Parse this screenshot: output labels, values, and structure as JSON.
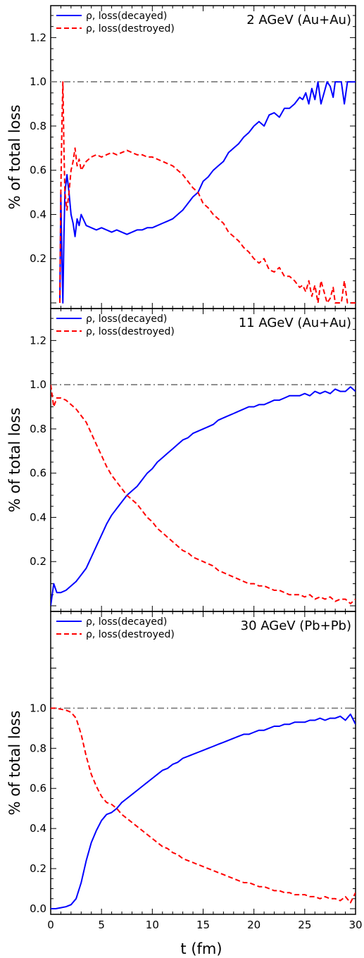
{
  "figure": {
    "xlabel": "t (fm)",
    "x_ticks": [
      "0",
      "5",
      "10",
      "15",
      "20",
      "25",
      "30"
    ]
  },
  "chart_data": [
    {
      "type": "line",
      "title": "2 AGeV (Au+Au)",
      "ylabel": "% of total loss",
      "xlim": [
        0,
        30
      ],
      "ylim": [
        0,
        1.3
      ],
      "y_ticks": [
        "0.2",
        "0.4",
        "0.6",
        "0.8",
        "1.0",
        "1.2"
      ],
      "reference_line": {
        "y": 1.0,
        "color": "#808080",
        "style": "dash-dot"
      },
      "legend_position": "top-left",
      "series": [
        {
          "name": "ρ, loss(decayed)",
          "color": "#0000ff",
          "style": "solid",
          "x": [
            0.9,
            1.0,
            1.1,
            1.2,
            1.3,
            1.4,
            1.6,
            1.8,
            2.0,
            2.2,
            2.4,
            2.6,
            2.8,
            3.0,
            3.5,
            4.0,
            4.5,
            5.0,
            5.5,
            6.0,
            6.5,
            7.0,
            7.5,
            8.0,
            8.5,
            9.0,
            9.5,
            10.0,
            10.5,
            11.0,
            11.5,
            12.0,
            12.5,
            13.0,
            13.5,
            14.0,
            14.5,
            15.0,
            15.5,
            16.0,
            16.5,
            17.0,
            17.5,
            18.0,
            18.5,
            19.0,
            19.5,
            20.0,
            20.5,
            21.0,
            21.5,
            22.0,
            22.5,
            23.0,
            23.5,
            24.0,
            24.5,
            24.8,
            25.1,
            25.4,
            25.7,
            26.0,
            26.3,
            26.6,
            26.9,
            27.2,
            27.5,
            27.8,
            28.0,
            28.3,
            28.6,
            28.9,
            29.2,
            29.5,
            30.0
          ],
          "y": [
            0.0,
            0.5,
            0.2,
            0.0,
            0.3,
            0.5,
            0.58,
            0.5,
            0.4,
            0.36,
            0.3,
            0.38,
            0.35,
            0.4,
            0.35,
            0.34,
            0.33,
            0.34,
            0.33,
            0.32,
            0.33,
            0.32,
            0.31,
            0.32,
            0.33,
            0.33,
            0.34,
            0.34,
            0.35,
            0.36,
            0.37,
            0.38,
            0.4,
            0.42,
            0.45,
            0.48,
            0.5,
            0.55,
            0.57,
            0.6,
            0.62,
            0.64,
            0.68,
            0.7,
            0.72,
            0.75,
            0.77,
            0.8,
            0.82,
            0.8,
            0.85,
            0.86,
            0.84,
            0.88,
            0.88,
            0.9,
            0.93,
            0.92,
            0.95,
            0.9,
            0.97,
            0.92,
            1.0,
            0.9,
            0.95,
            1.0,
            0.98,
            0.93,
            1.0,
            1.0,
            1.0,
            0.9,
            1.0,
            1.0,
            1.0
          ]
        },
        {
          "name": "ρ, loss(destroyed)",
          "color": "#ff0000",
          "style": "dashed",
          "x": [
            0.9,
            1.0,
            1.1,
            1.2,
            1.3,
            1.4,
            1.6,
            1.8,
            2.0,
            2.2,
            2.4,
            2.6,
            2.8,
            3.0,
            3.5,
            4.0,
            4.5,
            5.0,
            5.5,
            6.0,
            6.5,
            7.0,
            7.5,
            8.0,
            8.5,
            9.0,
            9.5,
            10.0,
            10.5,
            11.0,
            11.5,
            12.0,
            12.5,
            13.0,
            13.5,
            14.0,
            14.5,
            15.0,
            15.5,
            16.0,
            16.5,
            17.0,
            17.5,
            18.0,
            18.5,
            19.0,
            19.5,
            20.0,
            20.5,
            21.0,
            21.5,
            22.0,
            22.5,
            23.0,
            23.5,
            24.0,
            24.5,
            24.8,
            25.1,
            25.4,
            25.7,
            26.0,
            26.3,
            26.6,
            26.9,
            27.2,
            27.5,
            27.8,
            28.0,
            28.3,
            28.6,
            28.9,
            29.2,
            29.5,
            30.0
          ],
          "y": [
            0.0,
            0.5,
            0.8,
            1.0,
            0.7,
            0.5,
            0.42,
            0.5,
            0.6,
            0.64,
            0.7,
            0.62,
            0.65,
            0.6,
            0.64,
            0.66,
            0.67,
            0.66,
            0.67,
            0.68,
            0.67,
            0.68,
            0.69,
            0.68,
            0.67,
            0.67,
            0.66,
            0.66,
            0.65,
            0.64,
            0.63,
            0.62,
            0.6,
            0.58,
            0.55,
            0.52,
            0.5,
            0.45,
            0.43,
            0.4,
            0.38,
            0.36,
            0.32,
            0.3,
            0.28,
            0.25,
            0.23,
            0.2,
            0.18,
            0.2,
            0.15,
            0.14,
            0.16,
            0.12,
            0.12,
            0.1,
            0.07,
            0.08,
            0.05,
            0.1,
            0.03,
            0.08,
            0.0,
            0.1,
            0.05,
            0.0,
            0.02,
            0.07,
            0.0,
            0.0,
            0.0,
            0.1,
            0.0,
            0.0,
            0.0
          ]
        }
      ]
    },
    {
      "type": "line",
      "title": "11 AGeV (Au+Au)",
      "ylabel": "% of total loss",
      "xlim": [
        0,
        30
      ],
      "ylim": [
        0,
        1.3
      ],
      "y_ticks": [
        "0.2",
        "0.4",
        "0.6",
        "0.8",
        "1.0",
        "1.2"
      ],
      "reference_line": {
        "y": 1.0,
        "color": "#808080",
        "style": "dash-dot"
      },
      "legend_position": "top-left",
      "series": [
        {
          "name": "ρ, loss(decayed)",
          "color": "#0000ff",
          "style": "solid",
          "x": [
            0.0,
            0.3,
            0.6,
            1.0,
            1.5,
            2.0,
            2.5,
            3.0,
            3.5,
            4.0,
            4.5,
            5.0,
            5.5,
            6.0,
            6.5,
            7.0,
            7.5,
            8.0,
            8.5,
            9.0,
            9.5,
            10.0,
            10.5,
            11.0,
            11.5,
            12.0,
            12.5,
            13.0,
            13.5,
            14.0,
            14.5,
            15.0,
            15.5,
            16.0,
            16.5,
            17.0,
            17.5,
            18.0,
            18.5,
            19.0,
            19.5,
            20.0,
            20.5,
            21.0,
            21.5,
            22.0,
            22.5,
            23.0,
            23.5,
            24.0,
            24.5,
            25.0,
            25.5,
            26.0,
            26.5,
            27.0,
            27.5,
            28.0,
            28.5,
            29.0,
            29.5,
            30.0
          ],
          "y": [
            0.0,
            0.1,
            0.06,
            0.06,
            0.07,
            0.09,
            0.11,
            0.14,
            0.17,
            0.22,
            0.27,
            0.32,
            0.37,
            0.41,
            0.44,
            0.47,
            0.5,
            0.52,
            0.54,
            0.57,
            0.6,
            0.62,
            0.65,
            0.67,
            0.69,
            0.71,
            0.73,
            0.75,
            0.76,
            0.78,
            0.79,
            0.8,
            0.81,
            0.82,
            0.84,
            0.85,
            0.86,
            0.87,
            0.88,
            0.89,
            0.9,
            0.9,
            0.91,
            0.91,
            0.92,
            0.93,
            0.93,
            0.94,
            0.95,
            0.95,
            0.95,
            0.96,
            0.95,
            0.97,
            0.96,
            0.97,
            0.96,
            0.98,
            0.97,
            0.97,
            0.99,
            0.97
          ]
        },
        {
          "name": "ρ, loss(destroyed)",
          "color": "#ff0000",
          "style": "dashed",
          "x": [
            0.0,
            0.3,
            0.6,
            1.0,
            1.5,
            2.0,
            2.5,
            3.0,
            3.5,
            4.0,
            4.5,
            5.0,
            5.5,
            6.0,
            6.5,
            7.0,
            7.5,
            8.0,
            8.5,
            9.0,
            9.5,
            10.0,
            10.5,
            11.0,
            11.5,
            12.0,
            12.5,
            13.0,
            13.5,
            14.0,
            14.5,
            15.0,
            15.5,
            16.0,
            16.5,
            17.0,
            17.5,
            18.0,
            18.5,
            19.0,
            19.5,
            20.0,
            20.5,
            21.0,
            21.5,
            22.0,
            22.5,
            23.0,
            23.5,
            24.0,
            24.5,
            25.0,
            25.5,
            26.0,
            26.5,
            27.0,
            27.5,
            28.0,
            28.5,
            29.0,
            29.5,
            30.0
          ],
          "y": [
            1.0,
            0.9,
            0.94,
            0.94,
            0.93,
            0.91,
            0.89,
            0.86,
            0.83,
            0.78,
            0.73,
            0.68,
            0.63,
            0.59,
            0.56,
            0.53,
            0.5,
            0.48,
            0.46,
            0.43,
            0.4,
            0.38,
            0.35,
            0.33,
            0.31,
            0.29,
            0.27,
            0.25,
            0.24,
            0.22,
            0.21,
            0.2,
            0.19,
            0.18,
            0.16,
            0.15,
            0.14,
            0.13,
            0.12,
            0.11,
            0.1,
            0.1,
            0.09,
            0.09,
            0.08,
            0.07,
            0.07,
            0.06,
            0.05,
            0.05,
            0.05,
            0.04,
            0.05,
            0.03,
            0.04,
            0.03,
            0.04,
            0.02,
            0.03,
            0.03,
            0.01,
            0.03
          ]
        }
      ]
    },
    {
      "type": "line",
      "title": "30 AGeV (Pb+Pb)",
      "ylabel": "% of total loss",
      "xlim": [
        0,
        30
      ],
      "ylim": [
        0,
        1.3
      ],
      "y_ticks": [
        "0.0",
        "0.2",
        "0.4",
        "0.6",
        "0.8",
        "1.0"
      ],
      "reference_line": {
        "y": 1.0,
        "color": "#808080",
        "style": "dash-dot"
      },
      "legend_position": "top-left",
      "series": [
        {
          "name": "ρ, loss(decayed)",
          "color": "#0000ff",
          "style": "solid",
          "x": [
            0.0,
            0.5,
            1.0,
            1.5,
            2.0,
            2.5,
            3.0,
            3.5,
            4.0,
            4.5,
            5.0,
            5.5,
            6.0,
            6.5,
            7.0,
            7.5,
            8.0,
            8.5,
            9.0,
            9.5,
            10.0,
            10.5,
            11.0,
            11.5,
            12.0,
            12.5,
            13.0,
            13.5,
            14.0,
            14.5,
            15.0,
            15.5,
            16.0,
            16.5,
            17.0,
            17.5,
            18.0,
            18.5,
            19.0,
            19.5,
            20.0,
            20.5,
            21.0,
            21.5,
            22.0,
            22.5,
            23.0,
            23.5,
            24.0,
            24.5,
            25.0,
            25.5,
            26.0,
            26.5,
            27.0,
            27.5,
            28.0,
            28.5,
            29.0,
            29.5,
            30.0
          ],
          "y": [
            0.0,
            0.0,
            0.005,
            0.01,
            0.02,
            0.05,
            0.13,
            0.24,
            0.33,
            0.39,
            0.44,
            0.47,
            0.48,
            0.5,
            0.53,
            0.55,
            0.57,
            0.59,
            0.61,
            0.63,
            0.65,
            0.67,
            0.69,
            0.7,
            0.72,
            0.73,
            0.75,
            0.76,
            0.77,
            0.78,
            0.79,
            0.8,
            0.81,
            0.82,
            0.83,
            0.84,
            0.85,
            0.86,
            0.87,
            0.87,
            0.88,
            0.89,
            0.89,
            0.9,
            0.91,
            0.91,
            0.92,
            0.92,
            0.93,
            0.93,
            0.93,
            0.94,
            0.94,
            0.95,
            0.94,
            0.95,
            0.95,
            0.96,
            0.94,
            0.97,
            0.92
          ]
        },
        {
          "name": "ρ, loss(destroyed)",
          "color": "#ff0000",
          "style": "dashed",
          "x": [
            0.0,
            0.5,
            1.0,
            1.5,
            2.0,
            2.5,
            3.0,
            3.5,
            4.0,
            4.5,
            5.0,
            5.5,
            6.0,
            6.5,
            7.0,
            7.5,
            8.0,
            8.5,
            9.0,
            9.5,
            10.0,
            10.5,
            11.0,
            11.5,
            12.0,
            12.5,
            13.0,
            13.5,
            14.0,
            14.5,
            15.0,
            15.5,
            16.0,
            16.5,
            17.0,
            17.5,
            18.0,
            18.5,
            19.0,
            19.5,
            20.0,
            20.5,
            21.0,
            21.5,
            22.0,
            22.5,
            23.0,
            23.5,
            24.0,
            24.5,
            25.0,
            25.5,
            26.0,
            26.5,
            27.0,
            27.5,
            28.0,
            28.5,
            29.0,
            29.5,
            30.0
          ],
          "y": [
            1.0,
            1.0,
            0.995,
            0.99,
            0.98,
            0.95,
            0.87,
            0.76,
            0.67,
            0.61,
            0.56,
            0.53,
            0.52,
            0.5,
            0.47,
            0.45,
            0.43,
            0.41,
            0.39,
            0.37,
            0.35,
            0.33,
            0.31,
            0.3,
            0.28,
            0.27,
            0.25,
            0.24,
            0.23,
            0.22,
            0.21,
            0.2,
            0.19,
            0.18,
            0.17,
            0.16,
            0.15,
            0.14,
            0.13,
            0.13,
            0.12,
            0.11,
            0.11,
            0.1,
            0.09,
            0.09,
            0.08,
            0.08,
            0.07,
            0.07,
            0.07,
            0.06,
            0.06,
            0.05,
            0.06,
            0.05,
            0.05,
            0.04,
            0.06,
            0.03,
            0.08
          ]
        }
      ]
    }
  ]
}
